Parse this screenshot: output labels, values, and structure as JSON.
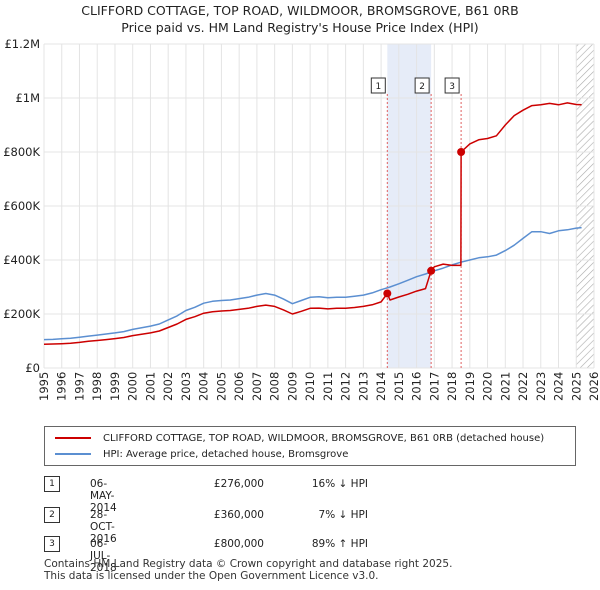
{
  "title_line1": "CLIFFORD COTTAGE, TOP ROAD, WILDMOOR, BROMSGROVE, B61 0RB",
  "title_line2": "Price paid vs. HM Land Registry's House Price Index (HPI)",
  "colors": {
    "property": "#cc0000",
    "hpi": "#5b8fd1",
    "shade": "#e6ecf8",
    "hatch": "#aaaaaa",
    "grid": "#e4e4e4"
  },
  "chart_data": {
    "type": "line",
    "ylim": [
      0,
      1200000
    ],
    "xlim": [
      1995,
      2026
    ],
    "yticks": [
      0,
      200000,
      400000,
      600000,
      800000,
      1000000,
      1200000
    ],
    "ytick_labels": [
      "£0",
      "£200K",
      "£400K",
      "£600K",
      "£800K",
      "£1M",
      "£1.2M"
    ],
    "xticks": [
      1995,
      1996,
      1997,
      1998,
      1999,
      2000,
      2001,
      2002,
      2003,
      2004,
      2005,
      2006,
      2007,
      2008,
      2009,
      2010,
      2011,
      2012,
      2013,
      2014,
      2015,
      2016,
      2017,
      2018,
      2019,
      2020,
      2021,
      2022,
      2023,
      2024,
      2025,
      2026
    ],
    "grid": true,
    "shaded_period": [
      2014.35,
      2016.82
    ],
    "hatched_from": 2025.0,
    "series": [
      {
        "name": "HPI: Average price, detached house, Bromsgrove",
        "x": [
          1995,
          1995.5,
          1996,
          1996.5,
          1997,
          1997.5,
          1998,
          1998.5,
          1999,
          1999.5,
          2000,
          2000.5,
          2001,
          2001.5,
          2002,
          2002.5,
          2003,
          2003.5,
          2004,
          2004.5,
          2005,
          2005.5,
          2006,
          2006.5,
          2007,
          2007.5,
          2008,
          2008.5,
          2009,
          2009.5,
          2010,
          2010.5,
          2011,
          2011.5,
          2012,
          2012.5,
          2013,
          2013.5,
          2014,
          2014.5,
          2015,
          2015.5,
          2016,
          2016.5,
          2017,
          2017.5,
          2018,
          2018.5,
          2019,
          2019.5,
          2020,
          2020.5,
          2021,
          2021.5,
          2022,
          2022.5,
          2023,
          2023.5,
          2024,
          2024.5,
          2025,
          2025.3
        ],
        "values": [
          105000,
          106000,
          108000,
          110000,
          114000,
          118000,
          122000,
          126000,
          130000,
          135000,
          143000,
          149000,
          155000,
          163000,
          178000,
          193000,
          213000,
          225000,
          240000,
          247000,
          250000,
          252000,
          257000,
          262000,
          270000,
          276000,
          270000,
          255000,
          238000,
          250000,
          262000,
          264000,
          260000,
          262000,
          262000,
          266000,
          270000,
          278000,
          290000,
          300000,
          312000,
          325000,
          338000,
          348000,
          360000,
          370000,
          382000,
          392000,
          400000,
          408000,
          412000,
          418000,
          435000,
          455000,
          480000,
          505000,
          505000,
          498000,
          508000,
          512000,
          518000,
          520000
        ]
      },
      {
        "name": "CLIFFORD COTTAGE, TOP ROAD, WILDMOOR, BROMSGROVE, B61 0RB (detached house)",
        "x": [
          1995,
          1995.5,
          1996,
          1996.5,
          1997,
          1997.5,
          1998,
          1998.5,
          1999,
          1999.5,
          2000,
          2000.5,
          2001,
          2001.5,
          2002,
          2002.5,
          2003,
          2003.5,
          2004,
          2004.5,
          2005,
          2005.5,
          2006,
          2006.5,
          2007,
          2007.5,
          2008,
          2008.5,
          2009,
          2009.5,
          2010,
          2010.5,
          2011,
          2011.5,
          2012,
          2012.5,
          2013,
          2013.5,
          2014,
          2014.35,
          2014.5,
          2015,
          2015.5,
          2016,
          2016.5,
          2016.82,
          2017,
          2017.5,
          2018,
          2018.5,
          2018.51,
          2019,
          2019.5,
          2020,
          2020.5,
          2021,
          2021.5,
          2022,
          2022.5,
          2023,
          2023.5,
          2024,
          2024.5,
          2025,
          2025.3
        ],
        "values": [
          88000,
          89000,
          90000,
          92000,
          95000,
          99000,
          102000,
          105000,
          109000,
          113000,
          120000,
          125000,
          130000,
          137000,
          150000,
          163000,
          180000,
          190000,
          203000,
          208000,
          211000,
          213000,
          217000,
          221000,
          228000,
          233000,
          228000,
          215000,
          200000,
          210000,
          221000,
          222000,
          219000,
          221000,
          221000,
          224000,
          228000,
          234000,
          245000,
          276000,
          252000,
          263000,
          273000,
          285000,
          294000,
          360000,
          375000,
          385000,
          380000,
          380000,
          800000,
          830000,
          845000,
          850000,
          860000,
          900000,
          935000,
          955000,
          972000,
          975000,
          980000,
          975000,
          982000,
          976000,
          975000
        ]
      }
    ],
    "sales": [
      {
        "label": "1",
        "x": 2014.35,
        "price": 276000
      },
      {
        "label": "2",
        "x": 2016.82,
        "price": 360000
      },
      {
        "label": "3",
        "x": 2018.51,
        "price": 800000
      }
    ],
    "legend_position": "below"
  },
  "legend": [
    {
      "label": "CLIFFORD COTTAGE, TOP ROAD, WILDMOOR, BROMSGROVE, B61 0RB (detached house)"
    },
    {
      "label": "HPI: Average price, detached house, Bromsgrove"
    }
  ],
  "transactions": [
    {
      "num": "1",
      "date": "06-MAY-2014",
      "price": "£276,000",
      "hpi": "16% ↓ HPI"
    },
    {
      "num": "2",
      "date": "28-OCT-2016",
      "price": "£360,000",
      "hpi": "7% ↓ HPI"
    },
    {
      "num": "3",
      "date": "06-JUL-2018",
      "price": "£800,000",
      "hpi": "89% ↑ HPI"
    }
  ],
  "footer_line1": "Contains HM Land Registry data © Crown copyright and database right 2025.",
  "footer_line2": "This data is licensed under the Open Government Licence v3.0."
}
